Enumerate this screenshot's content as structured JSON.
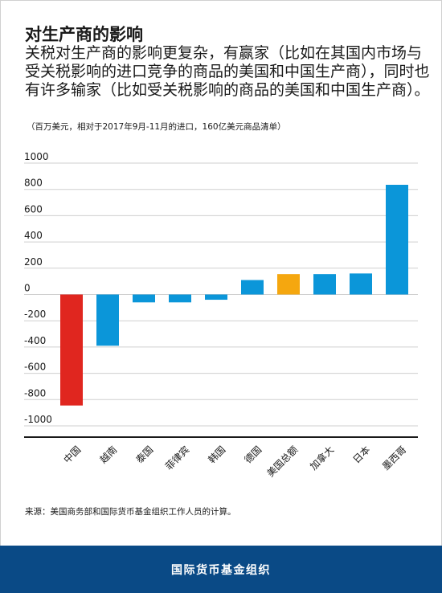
{
  "title": "对生产商的影响",
  "subtitle": "关税对生产商的影响更复杂，有赢家（比如在其国内市场与受关税影响的进口竞争的商品的美国和中国生产商），同时也有许多输家（比如受关税影响的商品的美国和中国生产商）。",
  "note": "（百万美元，相对于2017年9月-11月的进口，160亿美元商品清单）",
  "source": "来源：美国商务部和国际货币基金组织工作人员的计算。",
  "footer": {
    "label": "国际货币基金组织"
  },
  "colors": {
    "highlight_negative": "#e0261f",
    "bar": "#0b96d9",
    "total": "#f5a70f",
    "grid": "#cfcfcf",
    "footer_bg": "#0a4a86"
  },
  "chart_data": {
    "type": "bar",
    "title": "对生产商的影响",
    "xlabel": "",
    "ylabel": "",
    "ylim": [
      -1000,
      1000
    ],
    "yticks": [
      1000,
      800,
      600,
      400,
      200,
      0,
      -200,
      -400,
      -600,
      -800,
      -1000
    ],
    "grid": true,
    "categories": [
      "中国",
      "越南",
      "泰国",
      "菲律宾",
      "韩国",
      "德国",
      "美国总额",
      "加拿大",
      "日本",
      "墨西哥"
    ],
    "values": [
      -845,
      -390,
      -60,
      -60,
      -40,
      110,
      155,
      155,
      160,
      835
    ],
    "bar_colors": [
      "#e0261f",
      "#0b96d9",
      "#0b96d9",
      "#0b96d9",
      "#0b96d9",
      "#0b96d9",
      "#f5a70f",
      "#0b96d9",
      "#0b96d9",
      "#0b96d9"
    ]
  }
}
